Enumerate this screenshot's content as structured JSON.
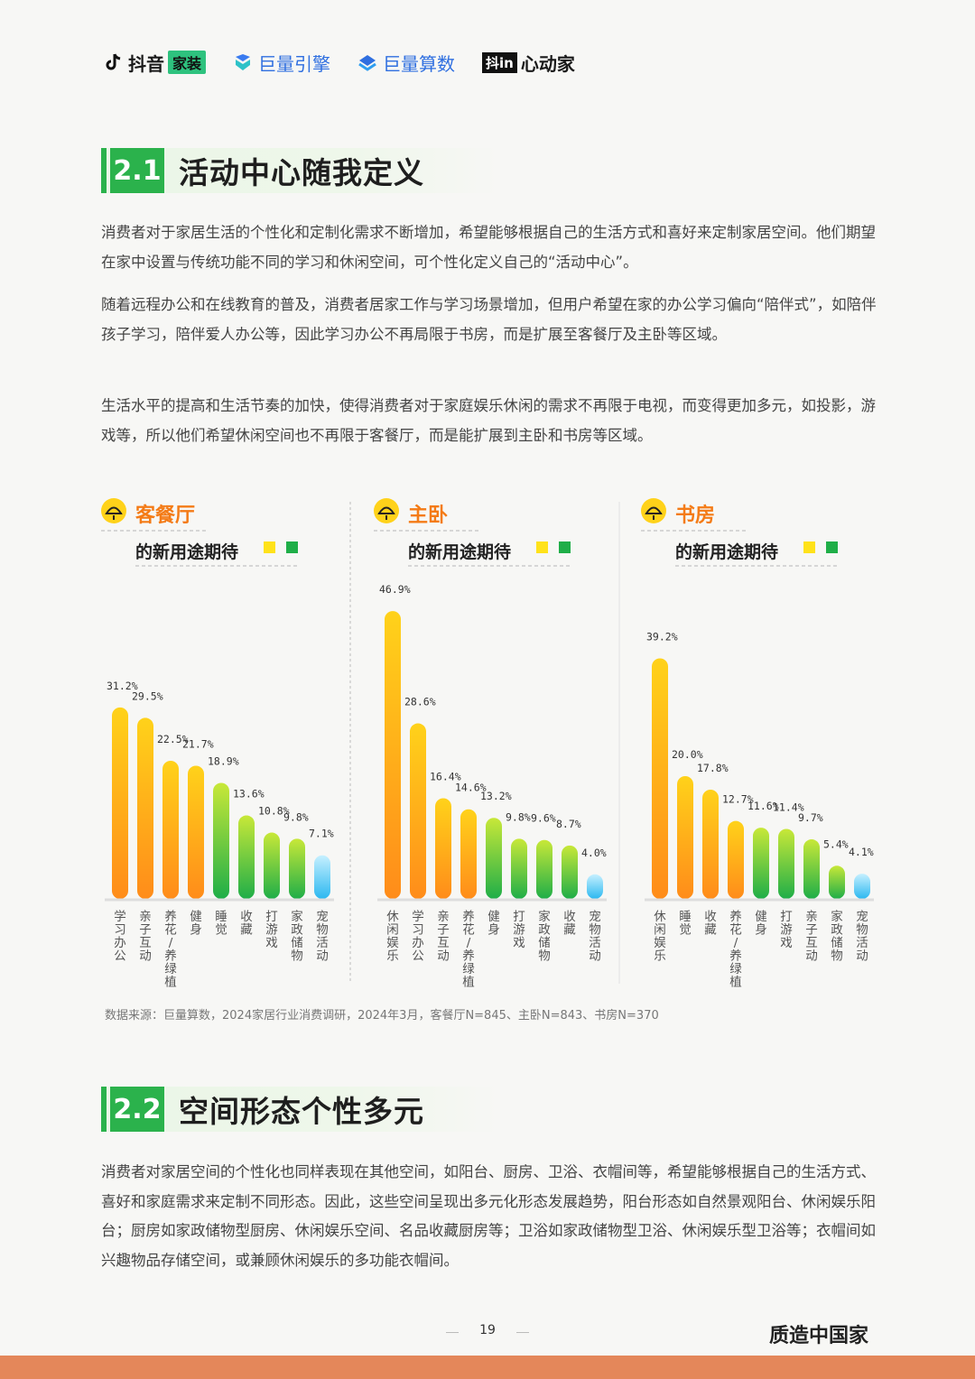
{
  "logos": {
    "douyin": "抖音",
    "douyin_badge": "家装",
    "julang_engine": "巨量引擎",
    "julang_suanshu": "巨量算数",
    "xindongjia_box": "抖in",
    "xindongjia": "心动家"
  },
  "section1": {
    "number": "2.1",
    "title": "活动中心随我定义",
    "paragraphs": [
      "消费者对于家居生活的个性化和定制化需求不断增加，希望能够根据自己的生活方式和喜好来定制家居空间。他们期望在家中设置与传统功能不同的学习和休闲空间，可个性化定义自己的“活动中心”。",
      "随着远程办公和在线教育的普及，消费者居家工作与学习场景增加，但用户希望在家的办公学习偏向“陪伴式”，如陪伴孩子学习，陪伴爱人办公等，因此学习办公不再局限于书房，而是扩展至客餐厅及主卧等区域。",
      "生活水平的提高和生活节奏的加快，使得消费者对于家庭娱乐休闲的需求不再限于电视，而变得更加多元，如投影，游戏等，所以他们希望休闲空间也不再限于客餐厅，而是能扩展到主卧和书房等区域。"
    ]
  },
  "chart_data": [
    {
      "type": "bar",
      "title": "客餐厅",
      "subtitle": "的新用途期待",
      "categories": [
        "学习办公",
        "亲子互动",
        "养花/养绿植",
        "健身",
        "睡觉",
        "收藏",
        "打游戏",
        "家政储物",
        "宠物活动"
      ],
      "values": [
        31.2,
        29.5,
        22.5,
        21.7,
        18.9,
        13.6,
        10.8,
        9.8,
        7.1
      ],
      "value_labels": [
        "31.2%",
        "29.5%",
        "22.5%",
        "21.7%",
        "18.9%",
        "13.6%",
        "10.8%",
        "9.8%",
        "7.1%"
      ],
      "ylim": [
        0,
        50
      ],
      "colors": [
        "orange",
        "orange",
        "orange",
        "orange",
        "green",
        "green",
        "green",
        "green",
        "blue"
      ]
    },
    {
      "type": "bar",
      "title": "主卧",
      "subtitle": "的新用途期待",
      "categories": [
        "休闲娱乐",
        "学习办公",
        "亲子互动",
        "养花/养绿植",
        "健身",
        "打游戏",
        "家政储物",
        "收藏",
        "宠物活动"
      ],
      "values": [
        46.9,
        28.6,
        16.4,
        14.6,
        13.2,
        9.8,
        9.6,
        8.7,
        4.0
      ],
      "value_labels": [
        "46.9%",
        "28.6%",
        "16.4%",
        "14.6%",
        "13.2%",
        "9.8%",
        "9.6%",
        "8.7%",
        "4.0%"
      ],
      "ylim": [
        0,
        50
      ],
      "colors": [
        "orange",
        "orange",
        "orange",
        "orange",
        "green",
        "green",
        "green",
        "green",
        "blue"
      ]
    },
    {
      "type": "bar",
      "title": "书房",
      "subtitle": "的新用途期待",
      "categories": [
        "休闲娱乐",
        "睡觉",
        "收藏",
        "养花/养绿植",
        "健身",
        "打游戏",
        "亲子互动",
        "家政储物",
        "宠物活动"
      ],
      "values": [
        39.2,
        20.0,
        17.8,
        12.7,
        11.6,
        11.4,
        9.7,
        5.4,
        4.1
      ],
      "value_labels": [
        "39.2%",
        "20.0%",
        "17.8%",
        "12.7%",
        "11.6%",
        "11.4%",
        "9.7%",
        "5.4%",
        "4.1%"
      ],
      "ylim": [
        0,
        50
      ],
      "colors": [
        "orange",
        "orange",
        "orange",
        "orange",
        "green",
        "green",
        "green",
        "green",
        "blue"
      ]
    }
  ],
  "colors": {
    "accent_green": "#2bb24c",
    "bar_orange_top": "#ffd21a",
    "bar_orange_bottom": "#ff8c1a",
    "bar_green_top": "#c8e838",
    "bar_green_bottom": "#1fae48",
    "bar_blue_top": "#c6f0ff",
    "bar_blue_bottom": "#2cb8f0",
    "title_orange": "#f47b16"
  },
  "source": "数据来源：巨量算数，2024家居行业消费调研，2024年3月，客餐厅N=845、主卧N=843、书房N=370",
  "section2": {
    "number": "2.2",
    "title": "空间形态个性多元",
    "paragraphs": [
      "消费者对家居空间的个性化也同样表现在其他空间，如阳台、厨房、卫浴、衣帽间等，希望能够根据自己的生活方式、喜好和家庭需求来定制不同形态。因此，这些空间呈现出多元化形态发展趋势，阳台形态如自然景观阳台、休闲娱乐阳台；厨房如家政储物型厨房、休闲娱乐空间、名品收藏厨房等；卫浴如家政储物型卫浴、休闲娱乐型卫浴等；衣帽间如兴趣物品存储空间，或兼顾休闲娱乐的多功能衣帽间。"
    ]
  },
  "footer": {
    "page_number": "19",
    "brand": "质造中国家"
  },
  "icons": {
    "logo": "douyin-note-icon",
    "room": "lamp-icon"
  }
}
